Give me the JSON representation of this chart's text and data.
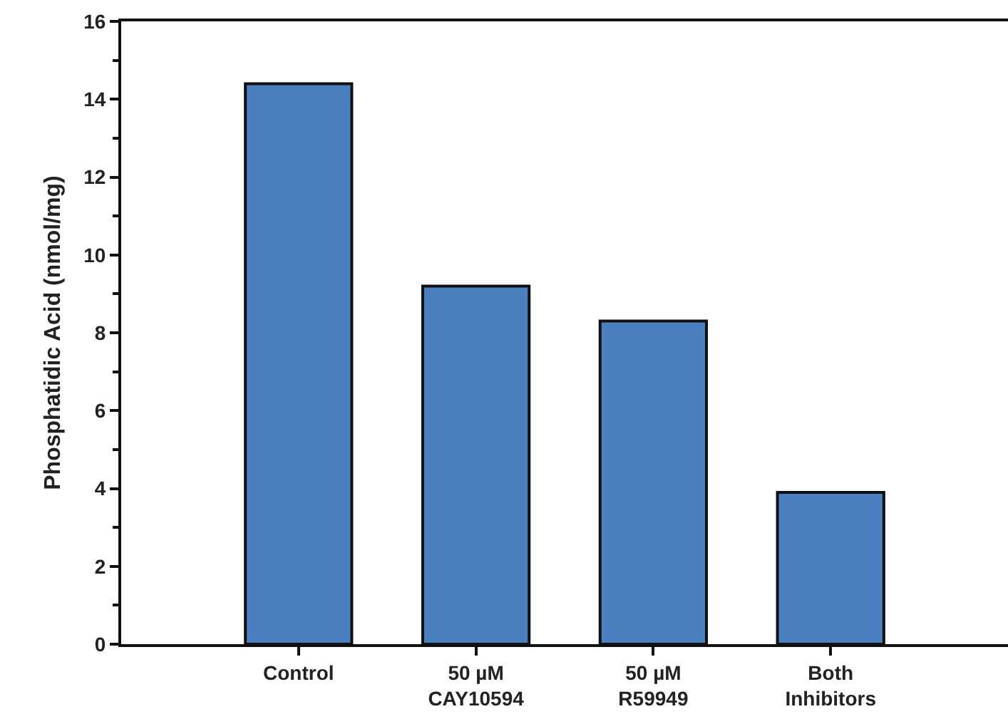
{
  "chart_data": {
    "type": "bar",
    "ylabel": "Phosphatidic Acid (nmol/mg)",
    "categories": [
      "Control",
      "50 µM\nCAY10594",
      "50 µM\nR59949",
      "Both\nInhibitors"
    ],
    "values": [
      14.4,
      9.2,
      8.3,
      3.9
    ],
    "color": "#4a80c0",
    "ylim": [
      0,
      16
    ],
    "yticks": [
      0,
      2,
      4,
      6,
      8,
      10,
      12,
      14,
      16
    ]
  }
}
